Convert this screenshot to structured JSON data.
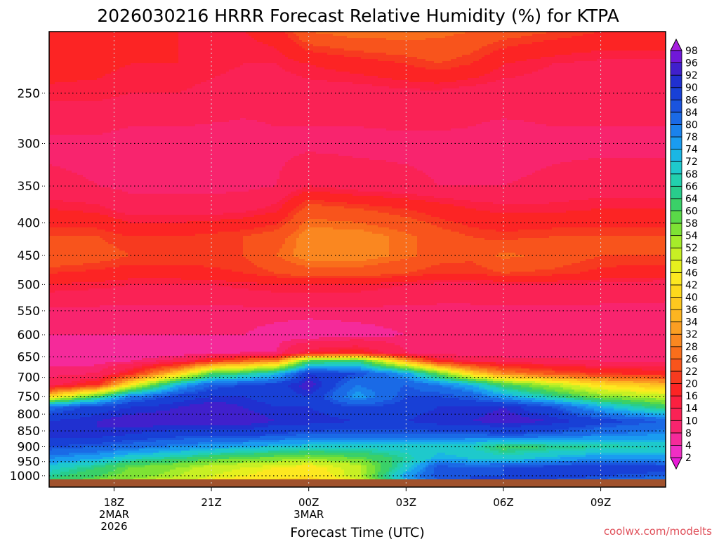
{
  "chart_data": {
    "type": "heatmap",
    "title": "2026030216 HRRR Forecast Relative Humidity (%) for KTPA",
    "xlabel": "Forecast Time (UTC)",
    "ylabel": "",
    "credit": "coolwx.com/modelts",
    "x_ticks": [
      {
        "label": "18Z",
        "sub1": "2MAR",
        "sub2": "2026",
        "hour": 18
      },
      {
        "label": "21Z",
        "sub1": "",
        "sub2": "",
        "hour": 21
      },
      {
        "label": "00Z",
        "sub1": "3MAR",
        "sub2": "",
        "hour": 24
      },
      {
        "label": "03Z",
        "sub1": "",
        "sub2": "",
        "hour": 27
      },
      {
        "label": "06Z",
        "sub1": "",
        "sub2": "",
        "hour": 30
      },
      {
        "label": "09Z",
        "sub1": "",
        "sub2": "",
        "hour": 33
      }
    ],
    "xlim": [
      16,
      35
    ],
    "y_ticks": [
      250,
      300,
      350,
      400,
      450,
      500,
      550,
      600,
      650,
      700,
      750,
      800,
      850,
      900,
      950,
      1000
    ],
    "ylim": [
      200,
      1013
    ],
    "y_log": true,
    "grid": true,
    "colorbar": {
      "levels": [
        2,
        4,
        8,
        10,
        14,
        16,
        20,
        22,
        26,
        28,
        32,
        34,
        36,
        40,
        42,
        46,
        48,
        52,
        54,
        58,
        60,
        64,
        66,
        68,
        72,
        74,
        78,
        80,
        84,
        86,
        90,
        92,
        96,
        98
      ],
      "colors": [
        "#e81cd6",
        "#f02ec4",
        "#f52a9a",
        "#f8246e",
        "#fa2255",
        "#fb2040",
        "#fc2424",
        "#f73a1f",
        "#f8541c",
        "#f96e1b",
        "#fa8720",
        "#fb9e22",
        "#fdb521",
        "#fec81f",
        "#fed91c",
        "#fde820",
        "#e6f01e",
        "#c8f024",
        "#a6ec2a",
        "#7ee234",
        "#5ad948",
        "#3ad068",
        "#28cc8c",
        "#22d0ae",
        "#1ec9cc",
        "#1ab6e4",
        "#1a9cf0",
        "#1a82ec",
        "#1a6ae6",
        "#1a54de",
        "#1840d6",
        "#2030d0",
        "#4020cc",
        "#7018d8",
        "#a620e0"
      ]
    },
    "profiles": [
      {
        "p": 200,
        "rh": [
          16,
          16,
          16,
          16,
          16,
          16,
          18,
          26,
          28,
          28,
          27,
          26,
          24,
          22,
          20,
          20
        ]
      },
      {
        "p": 225,
        "rh": [
          18,
          17,
          16,
          16,
          15,
          14,
          14,
          16,
          18,
          20,
          22,
          20,
          16,
          14,
          13,
          13
        ]
      },
      {
        "p": 250,
        "rh": [
          15,
          15,
          14,
          14,
          13,
          12,
          12,
          12,
          12,
          13,
          13,
          12,
          12,
          12,
          12,
          12
        ]
      },
      {
        "p": 300,
        "rh": [
          9,
          9,
          8,
          8,
          8,
          8,
          9,
          9,
          9,
          9,
          9,
          9,
          8,
          9,
          9,
          9
        ]
      },
      {
        "p": 350,
        "rh": [
          11,
          10,
          9,
          9,
          9,
          9,
          10,
          14,
          12,
          11,
          10,
          10,
          10,
          11,
          12,
          12
        ]
      },
      {
        "p": 380,
        "rh": [
          16,
          15,
          12,
          12,
          12,
          13,
          15,
          24,
          22,
          20,
          18,
          16,
          15,
          15,
          16,
          16
        ]
      },
      {
        "p": 420,
        "rh": [
          22,
          22,
          20,
          20,
          21,
          22,
          24,
          30,
          30,
          27,
          24,
          22,
          21,
          22,
          22,
          22
        ]
      },
      {
        "p": 450,
        "rh": [
          26,
          24,
          22,
          22,
          22,
          22,
          26,
          30,
          30,
          27,
          24,
          23,
          27,
          25,
          22,
          22
        ]
      },
      {
        "p": 480,
        "rh": [
          20,
          19,
          18,
          18,
          19,
          20,
          22,
          24,
          24,
          22,
          20,
          20,
          22,
          21,
          19,
          18
        ]
      },
      {
        "p": 500,
        "rh": [
          16,
          15,
          14,
          14,
          14,
          15,
          16,
          16,
          16,
          14,
          13,
          13,
          14,
          14,
          13,
          12
        ]
      },
      {
        "p": 550,
        "rh": [
          9,
          9,
          9,
          9,
          9,
          9,
          9,
          9,
          9,
          9,
          9,
          9,
          9,
          9,
          9,
          9
        ]
      },
      {
        "p": 600,
        "rh": [
          8,
          8,
          8,
          8,
          8,
          8,
          7,
          6,
          7,
          8,
          8,
          8,
          8,
          8,
          8,
          8
        ]
      },
      {
        "p": 640,
        "rh": [
          6,
          5,
          5,
          6,
          7,
          8,
          8,
          16,
          18,
          10,
          8,
          8,
          8,
          8,
          8,
          8
        ]
      },
      {
        "p": 660,
        "rh": [
          7,
          7,
          8,
          12,
          20,
          26,
          30,
          60,
          64,
          34,
          18,
          14,
          12,
          11,
          10,
          10
        ]
      },
      {
        "p": 690,
        "rh": [
          9,
          10,
          18,
          40,
          60,
          64,
          72,
          90,
          86,
          76,
          58,
          40,
          30,
          24,
          20,
          18
        ]
      },
      {
        "p": 720,
        "rh": [
          12,
          20,
          44,
          74,
          84,
          86,
          88,
          94,
          80,
          84,
          80,
          74,
          62,
          52,
          42,
          36
        ]
      },
      {
        "p": 750,
        "rh": [
          40,
          62,
          80,
          88,
          90,
          90,
          88,
          90,
          76,
          86,
          86,
          84,
          76,
          66,
          56,
          50
        ]
      },
      {
        "p": 780,
        "rh": [
          82,
          88,
          90,
          92,
          94,
          92,
          90,
          90,
          86,
          88,
          90,
          90,
          92,
          86,
          74,
          62
        ]
      },
      {
        "p": 820,
        "rh": [
          90,
          92,
          94,
          94,
          94,
          94,
          92,
          92,
          90,
          90,
          92,
          92,
          94,
          92,
          88,
          84
        ]
      },
      {
        "p": 860,
        "rh": [
          92,
          92,
          90,
          88,
          88,
          88,
          86,
          84,
          84,
          84,
          84,
          84,
          86,
          84,
          80,
          78
        ]
      },
      {
        "p": 900,
        "rh": [
          86,
          84,
          82,
          78,
          76,
          74,
          72,
          70,
          70,
          70,
          70,
          68,
          62,
          64,
          66,
          68
        ]
      },
      {
        "p": 940,
        "rh": [
          78,
          74,
          68,
          64,
          60,
          58,
          56,
          54,
          58,
          66,
          74,
          72,
          70,
          74,
          78,
          76
        ]
      },
      {
        "p": 970,
        "rh": [
          70,
          64,
          58,
          54,
          50,
          48,
          46,
          44,
          50,
          70,
          86,
          84,
          86,
          88,
          90,
          88
        ]
      },
      {
        "p": 1000,
        "rh": [
          66,
          60,
          56,
          52,
          48,
          46,
          44,
          42,
          50,
          76,
          86,
          86,
          86,
          88,
          86,
          84
        ]
      },
      {
        "p": 1013,
        "rh": [
          64,
          58,
          54,
          50,
          46,
          44,
          42,
          40,
          48,
          74,
          84,
          86,
          86,
          86,
          84,
          82
        ]
      }
    ],
    "profile_hours": [
      16,
      17.5,
      18.5,
      20,
      21,
      22,
      23,
      24,
      25.5,
      27,
      28,
      29,
      30,
      31.5,
      33,
      35
    ]
  }
}
